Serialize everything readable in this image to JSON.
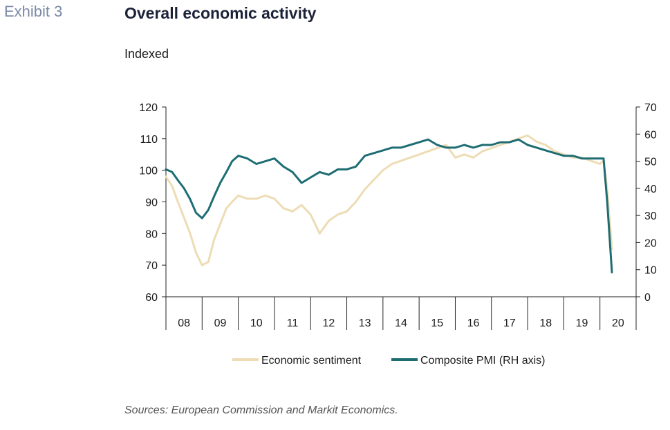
{
  "header": {
    "exhibit": "Exhibit 3",
    "title": "Overall economic activity",
    "subtitle": "Indexed"
  },
  "footer": {
    "source": "Sources: European Commission and Markit Economics."
  },
  "colors": {
    "sentiment": "#eddcb4",
    "pmi": "#1d6d73",
    "axis": "#222222"
  },
  "chart_data": {
    "type": "line",
    "title": "Overall economic activity",
    "subtitle": "Indexed",
    "x_categories": [
      "08",
      "09",
      "10",
      "11",
      "12",
      "13",
      "14",
      "15",
      "16",
      "17",
      "18",
      "19",
      "20"
    ],
    "left_axis": {
      "ylim": [
        60,
        120
      ],
      "ticks": [
        120,
        110,
        100,
        90,
        80,
        70,
        60
      ]
    },
    "right_axis": {
      "ylim": [
        0,
        70
      ],
      "ticks": [
        70,
        60,
        50,
        40,
        30,
        20,
        10,
        0
      ]
    },
    "grid": false,
    "legend": "bottom",
    "series": [
      {
        "name": "Economic sentiment",
        "axis": "left",
        "x": [
          2008.0,
          2008.17,
          2008.33,
          2008.5,
          2008.67,
          2008.83,
          2009.0,
          2009.17,
          2009.33,
          2009.5,
          2009.67,
          2009.83,
          2010.0,
          2010.25,
          2010.5,
          2010.75,
          2011.0,
          2011.25,
          2011.5,
          2011.75,
          2012.0,
          2012.25,
          2012.5,
          2012.75,
          2013.0,
          2013.25,
          2013.5,
          2013.75,
          2014.0,
          2014.25,
          2014.5,
          2014.75,
          2015.0,
          2015.25,
          2015.5,
          2015.75,
          2016.0,
          2016.25,
          2016.5,
          2016.75,
          2017.0,
          2017.25,
          2017.5,
          2017.75,
          2018.0,
          2018.25,
          2018.5,
          2018.75,
          2019.0,
          2019.25,
          2019.5,
          2019.75,
          2020.0,
          2020.1,
          2020.2,
          2020.33
        ],
        "values": [
          98,
          95,
          90,
          85,
          80,
          74,
          70,
          71,
          78,
          83,
          88,
          90,
          92,
          91,
          91,
          92,
          91,
          88,
          87,
          89,
          86,
          80,
          84,
          86,
          87,
          90,
          94,
          97,
          100,
          102,
          103,
          104,
          105,
          106,
          107,
          108,
          104,
          105,
          104,
          106,
          107,
          108,
          109,
          110,
          111,
          109,
          108,
          106,
          105,
          104,
          104,
          103,
          102,
          103,
          94,
          75
        ]
      },
      {
        "name": "Composite PMI (RH axis)",
        "axis": "right",
        "x": [
          2008.0,
          2008.17,
          2008.33,
          2008.5,
          2008.67,
          2008.83,
          2009.0,
          2009.17,
          2009.33,
          2009.5,
          2009.67,
          2009.83,
          2010.0,
          2010.25,
          2010.5,
          2010.75,
          2011.0,
          2011.25,
          2011.5,
          2011.75,
          2012.0,
          2012.25,
          2012.5,
          2012.75,
          2013.0,
          2013.25,
          2013.5,
          2013.75,
          2014.0,
          2014.25,
          2014.5,
          2014.75,
          2015.0,
          2015.25,
          2015.5,
          2015.75,
          2016.0,
          2016.25,
          2016.5,
          2016.75,
          2017.0,
          2017.25,
          2017.5,
          2017.75,
          2018.0,
          2018.25,
          2018.5,
          2018.75,
          2019.0,
          2019.25,
          2019.5,
          2019.75,
          2020.0,
          2020.1,
          2020.2,
          2020.33
        ],
        "values": [
          47,
          46,
          43,
          40,
          36,
          31,
          29,
          32,
          37,
          42,
          46,
          50,
          52,
          51,
          49,
          50,
          51,
          48,
          46,
          42,
          44,
          46,
          45,
          47,
          47,
          48,
          52,
          53,
          54,
          55,
          55,
          56,
          57,
          58,
          56,
          55,
          55,
          56,
          55,
          56,
          56,
          57,
          57,
          58,
          56,
          55,
          54,
          53,
          52,
          52,
          51,
          51,
          51,
          51,
          35,
          9
        ]
      }
    ]
  }
}
